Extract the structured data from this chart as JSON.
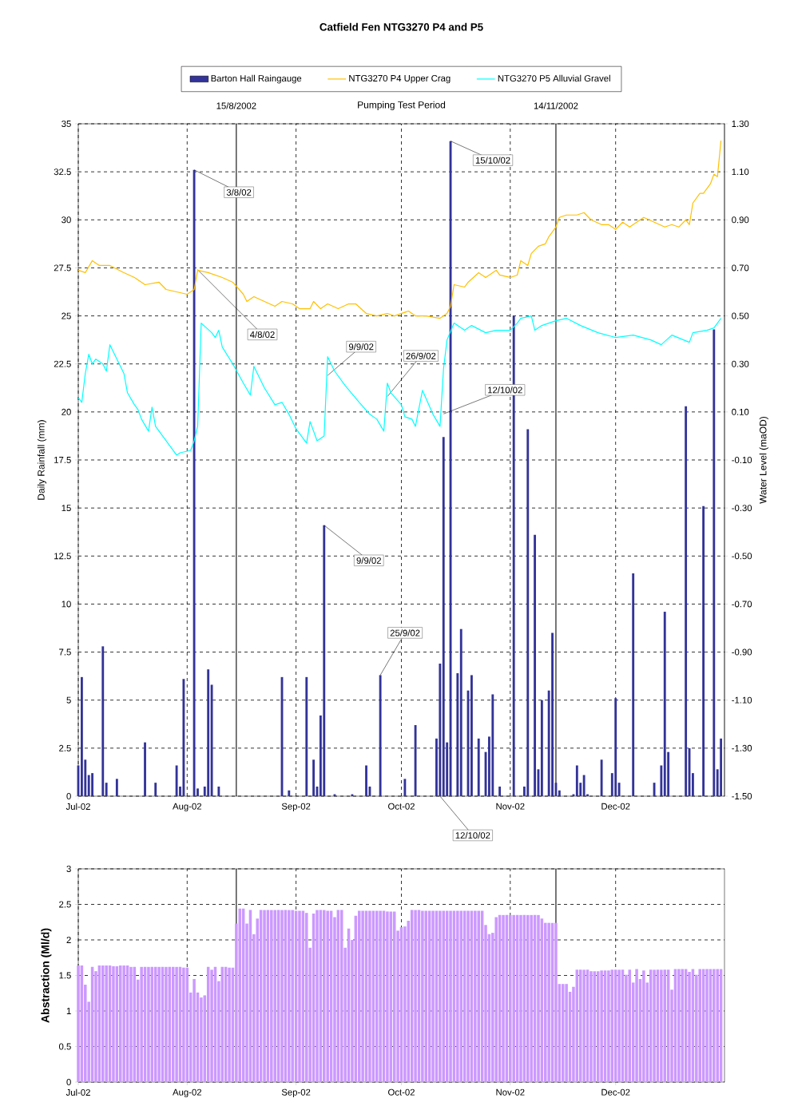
{
  "chart_data": [
    {
      "type": "bar",
      "title": "Catfield Fen NTG3270 P4 and P5",
      "ylabel": "Daily Rainfall (mm)",
      "y2label": "Water Level (maOD)",
      "xlim": [
        "2002-07-01",
        "2003-01-01"
      ],
      "xticks": [
        {
          "value": "2002-07-01",
          "label": "Jul-02"
        },
        {
          "value": "2002-08-01",
          "label": "Aug-02"
        },
        {
          "value": "2002-09-01",
          "label": "Sep-02"
        },
        {
          "value": "2002-10-01",
          "label": "Oct-02"
        },
        {
          "value": "2002-11-01",
          "label": "Nov-02"
        },
        {
          "value": "2002-12-01",
          "label": "Dec-02"
        }
      ],
      "ylim": [
        0,
        35
      ],
      "yticks": [
        0,
        2.5,
        5,
        7.5,
        10,
        12.5,
        15,
        17.5,
        20,
        22.5,
        25,
        27.5,
        30,
        32.5,
        35
      ],
      "y2lim": [
        -1.5,
        1.3
      ],
      "y2ticks": [
        {
          "value": -1.5,
          "label": "-1.50"
        },
        {
          "value": -1.3,
          "label": "-1.30"
        },
        {
          "value": -1.1,
          "label": "-1.10"
        },
        {
          "value": -0.9,
          "label": "-0.90"
        },
        {
          "value": -0.7,
          "label": "-0.70"
        },
        {
          "value": -0.5,
          "label": "-0.50"
        },
        {
          "value": -0.3,
          "label": "-0.30"
        },
        {
          "value": -0.1,
          "label": "-0.10"
        },
        {
          "value": 0.1,
          "label": "0.10"
        },
        {
          "value": 0.3,
          "label": "0.30"
        },
        {
          "value": 0.5,
          "label": "0.50"
        },
        {
          "value": 0.7,
          "label": "0.70"
        },
        {
          "value": 0.9,
          "label": "0.90"
        },
        {
          "value": 1.1,
          "label": "1.10"
        },
        {
          "value": 1.3,
          "label": "1.30"
        }
      ],
      "grid": true,
      "legend": "top",
      "series": [
        {
          "name": "Barton Hall Raingauge",
          "color": "#333399",
          "x": [
            "2002-07-01",
            "2002-07-02",
            "2002-07-03",
            "2002-07-04",
            "2002-07-05",
            "2002-07-08",
            "2002-07-09",
            "2002-07-12",
            "2002-07-20",
            "2002-07-23",
            "2002-07-29",
            "2002-07-30",
            "2002-07-31",
            "2002-08-03",
            "2002-08-04",
            "2002-08-06",
            "2002-08-07",
            "2002-08-08",
            "2002-08-10",
            "2002-08-28",
            "2002-08-30",
            "2002-09-04",
            "2002-09-06",
            "2002-09-07",
            "2002-09-08",
            "2002-09-09",
            "2002-09-12",
            "2002-09-17",
            "2002-09-21",
            "2002-09-22",
            "2002-09-25",
            "2002-10-02",
            "2002-10-05",
            "2002-10-11",
            "2002-10-12",
            "2002-10-13",
            "2002-10-14",
            "2002-10-15",
            "2002-10-17",
            "2002-10-18",
            "2002-10-20",
            "2002-10-21",
            "2002-10-23",
            "2002-10-25",
            "2002-10-26",
            "2002-10-27",
            "2002-10-29",
            "2002-11-02",
            "2002-11-05",
            "2002-11-06",
            "2002-11-08",
            "2002-11-09",
            "2002-11-10",
            "2002-11-12",
            "2002-11-13",
            "2002-11-14",
            "2002-11-15",
            "2002-11-19",
            "2002-11-20",
            "2002-11-21",
            "2002-11-22",
            "2002-11-23",
            "2002-11-27",
            "2002-11-30",
            "2002-12-01",
            "2002-12-02",
            "2002-12-06",
            "2002-12-12",
            "2002-12-14",
            "2002-12-15",
            "2002-12-16",
            "2002-12-21",
            "2002-12-22",
            "2002-12-23",
            "2002-12-26",
            "2002-12-29",
            "2002-12-30",
            "2002-12-31"
          ],
          "values": [
            1.6,
            6.2,
            1.9,
            1.1,
            1.2,
            7.8,
            0.7,
            0.9,
            2.8,
            0.7,
            1.6,
            0.5,
            6.1,
            32.6,
            0.4,
            0.5,
            6.6,
            5.8,
            0.5,
            6.2,
            0.3,
            6.2,
            1.9,
            0.5,
            4.2,
            14.1,
            0.1,
            0.1,
            1.6,
            0.5,
            6.3,
            0.9,
            3.7,
            3.0,
            6.9,
            18.7,
            2.8,
            34.1,
            6.4,
            8.7,
            5.5,
            6.3,
            3.0,
            2.3,
            3.1,
            5.3,
            0.5,
            25.0,
            0.5,
            19.1,
            13.6,
            1.4,
            5.0,
            5.5,
            8.5,
            0.7,
            0.3,
            0.1,
            1.6,
            0.7,
            1.1,
            0.1,
            1.9,
            1.2,
            5.1,
            0.7,
            11.6,
            0.7,
            1.6,
            9.6,
            2.3,
            20.3,
            2.5,
            1.2,
            15.1,
            24.3,
            1.4,
            3.0
          ]
        },
        {
          "name": "NTG3270 P4 Upper Crag",
          "type": "line",
          "axis": "y2",
          "color": "#ffc000",
          "x": [
            "2002-07-01",
            "2002-07-03",
            "2002-07-05",
            "2002-07-07",
            "2002-07-10",
            "2002-07-14",
            "2002-07-17",
            "2002-07-20",
            "2002-07-24",
            "2002-07-26",
            "2002-07-29",
            "2002-08-01",
            "2002-08-03",
            "2002-08-04",
            "2002-08-07",
            "2002-08-11",
            "2002-08-14",
            "2002-08-17",
            "2002-08-18",
            "2002-08-20",
            "2002-08-23",
            "2002-08-26",
            "2002-08-28",
            "2002-08-31",
            "2002-09-02",
            "2002-09-05",
            "2002-09-06",
            "2002-09-08",
            "2002-09-10",
            "2002-09-13",
            "2002-09-16",
            "2002-09-18",
            "2002-09-21",
            "2002-09-24",
            "2002-09-27",
            "2002-09-29",
            "2002-10-03",
            "2002-10-05",
            "2002-10-08",
            "2002-10-12",
            "2002-10-14",
            "2002-10-15",
            "2002-10-16",
            "2002-10-19",
            "2002-10-20",
            "2002-10-23",
            "2002-10-25",
            "2002-10-28",
            "2002-10-29",
            "2002-11-01",
            "2002-11-03",
            "2002-11-04",
            "2002-11-06",
            "2002-11-07",
            "2002-11-09",
            "2002-11-11",
            "2002-11-12",
            "2002-11-14",
            "2002-11-15",
            "2002-11-17",
            "2002-11-20",
            "2002-11-22",
            "2002-11-24",
            "2002-11-27",
            "2002-11-29",
            "2002-12-01",
            "2002-12-03",
            "2002-12-05",
            "2002-12-06",
            "2002-12-09",
            "2002-12-12",
            "2002-12-15",
            "2002-12-17",
            "2002-12-19",
            "2002-12-21",
            "2002-12-22",
            "2002-12-23",
            "2002-12-25",
            "2002-12-26",
            "2002-12-28",
            "2002-12-29",
            "2002-12-30",
            "2002-12-31"
          ],
          "values": [
            0.69,
            0.68,
            0.73,
            0.71,
            0.71,
            0.68,
            0.66,
            0.63,
            0.64,
            0.61,
            0.6,
            0.59,
            0.61,
            0.69,
            0.68,
            0.66,
            0.64,
            0.59,
            0.56,
            0.58,
            0.56,
            0.54,
            0.56,
            0.55,
            0.53,
            0.53,
            0.56,
            0.53,
            0.55,
            0.53,
            0.55,
            0.55,
            0.51,
            0.5,
            0.51,
            0.5,
            0.52,
            0.5,
            0.5,
            0.49,
            0.51,
            0.54,
            0.63,
            0.62,
            0.64,
            0.68,
            0.66,
            0.69,
            0.67,
            0.66,
            0.67,
            0.73,
            0.71,
            0.76,
            0.79,
            0.8,
            0.83,
            0.87,
            0.91,
            0.92,
            0.92,
            0.93,
            0.9,
            0.88,
            0.88,
            0.86,
            0.89,
            0.87,
            0.88,
            0.91,
            0.89,
            0.87,
            0.88,
            0.87,
            0.9,
            0.88,
            0.97,
            1.01,
            1.01,
            1.05,
            1.09,
            1.08,
            1.23
          ]
        },
        {
          "name": "NTG3270 P5 Alluvial Gravel",
          "type": "line",
          "axis": "y2",
          "color": "#00ffff",
          "x": [
            "2002-07-01",
            "2002-07-02",
            "2002-07-03",
            "2002-07-04",
            "2002-07-05",
            "2002-07-06",
            "2002-07-08",
            "2002-07-09",
            "2002-07-10",
            "2002-07-12",
            "2002-07-14",
            "2002-07-15",
            "2002-07-17",
            "2002-07-18",
            "2002-07-19",
            "2002-07-21",
            "2002-07-22",
            "2002-07-23",
            "2002-07-25",
            "2002-07-27",
            "2002-07-29",
            "2002-07-30",
            "2002-08-02",
            "2002-08-03",
            "2002-08-04",
            "2002-08-05",
            "2002-08-08",
            "2002-08-09",
            "2002-08-10",
            "2002-08-11",
            "2002-08-14",
            "2002-08-17",
            "2002-08-19",
            "2002-08-20",
            "2002-08-23",
            "2002-08-26",
            "2002-08-28",
            "2002-08-30",
            "2002-09-01",
            "2002-09-04",
            "2002-09-05",
            "2002-09-07",
            "2002-09-09",
            "2002-09-10",
            "2002-09-12",
            "2002-09-15",
            "2002-09-19",
            "2002-09-22",
            "2002-09-24",
            "2002-09-26",
            "2002-09-27",
            "2002-09-28",
            "2002-10-01",
            "2002-10-02",
            "2002-10-04",
            "2002-10-05",
            "2002-10-07",
            "2002-10-10",
            "2002-10-12",
            "2002-10-13",
            "2002-10-14",
            "2002-10-16",
            "2002-10-19",
            "2002-10-21",
            "2002-10-25",
            "2002-10-28",
            "2002-11-01",
            "2002-11-03",
            "2002-11-04",
            "2002-11-07",
            "2002-11-08",
            "2002-11-10",
            "2002-11-14",
            "2002-11-17",
            "2002-11-21",
            "2002-11-26",
            "2002-12-01",
            "2002-12-06",
            "2002-12-11",
            "2002-12-14",
            "2002-12-17",
            "2002-12-22",
            "2002-12-23",
            "2002-12-27",
            "2002-12-29",
            "2002-12-31"
          ],
          "values": [
            0.16,
            0.14,
            0.26,
            0.34,
            0.3,
            0.32,
            0.3,
            0.27,
            0.38,
            0.32,
            0.26,
            0.18,
            0.13,
            0.11,
            0.07,
            0.02,
            0.12,
            0.04,
            0.0,
            -0.04,
            -0.08,
            -0.07,
            -0.06,
            -0.02,
            0.04,
            0.47,
            0.43,
            0.41,
            0.44,
            0.37,
            0.3,
            0.22,
            0.17,
            0.29,
            0.2,
            0.13,
            0.14,
            0.09,
            0.03,
            -0.03,
            0.06,
            -0.02,
            0.0,
            0.33,
            0.27,
            0.21,
            0.14,
            0.09,
            0.07,
            0.02,
            0.22,
            0.18,
            0.13,
            0.08,
            0.07,
            0.04,
            0.19,
            0.09,
            0.04,
            0.28,
            0.4,
            0.47,
            0.44,
            0.46,
            0.43,
            0.44,
            0.44,
            0.47,
            0.49,
            0.5,
            0.44,
            0.46,
            0.48,
            0.49,
            0.46,
            0.43,
            0.41,
            0.42,
            0.4,
            0.38,
            0.42,
            0.39,
            0.43,
            0.44,
            0.45,
            0.49
          ]
        }
      ],
      "ref_lines": [
        {
          "axis": "x",
          "value": "2002-08-15",
          "label": "15/8/2002"
        },
        {
          "axis": "x",
          "value": "2002-11-14",
          "label": "14/11/2002"
        }
      ],
      "annotations": [
        "Pumping Test Period",
        {
          "text": "3/8/02",
          "x": "2002-08-03",
          "y": 32.6
        },
        {
          "text": "4/8/02",
          "x": "2002-08-04",
          "y": 27.4
        },
        {
          "text": "9/9/02",
          "x": "2002-09-10",
          "y": 21.9
        },
        {
          "text": "26/9/02",
          "x": "2002-09-27",
          "y": 20.8
        },
        {
          "text": "12/10/02",
          "x": "2002-10-13",
          "y": 19.9
        },
        {
          "text": "15/10/02",
          "x": "2002-10-15",
          "y": 34.1
        },
        {
          "text": "9/9/02",
          "x": "2002-09-09",
          "y": 14.1
        },
        {
          "text": "25/9/02",
          "x": "2002-09-25",
          "y": 6.3
        },
        {
          "text": "12/10/02",
          "x": "2002-10-12",
          "y": 0
        }
      ]
    },
    {
      "type": "bar",
      "ylabel": "Abstraction (Ml/d)",
      "xlim": [
        "2002-07-01",
        "2003-01-01"
      ],
      "xticks": [
        {
          "value": "2002-07-01",
          "label": "Jul-02"
        },
        {
          "value": "2002-08-01",
          "label": "Aug-02"
        },
        {
          "value": "2002-09-01",
          "label": "Sep-02"
        },
        {
          "value": "2002-10-01",
          "label": "Oct-02"
        },
        {
          "value": "2002-11-01",
          "label": "Nov-02"
        },
        {
          "value": "2002-12-01",
          "label": "Dec-02"
        }
      ],
      "ylim": [
        0,
        3
      ],
      "yticks": [
        0,
        0.5,
        1,
        1.5,
        2,
        2.5,
        3
      ],
      "grid": true,
      "series": [
        {
          "color": "#cc99ff",
          "x": [
            "2002-07-01",
            "2002-07-02",
            "2002-07-03",
            "2002-07-04",
            "2002-07-05",
            "2002-07-06",
            "2002-07-07",
            "2002-07-08",
            "2002-07-09",
            "2002-07-10",
            "2002-07-11",
            "2002-07-12",
            "2002-07-13",
            "2002-07-14",
            "2002-07-15",
            "2002-07-16",
            "2002-07-17",
            "2002-07-18",
            "2002-07-19",
            "2002-07-20",
            "2002-07-21",
            "2002-07-22",
            "2002-07-23",
            "2002-07-24",
            "2002-07-25",
            "2002-07-26",
            "2002-07-27",
            "2002-07-28",
            "2002-07-29",
            "2002-07-30",
            "2002-07-31",
            "2002-08-01",
            "2002-08-02",
            "2002-08-03",
            "2002-08-04",
            "2002-08-05",
            "2002-08-06",
            "2002-08-07",
            "2002-08-08",
            "2002-08-09",
            "2002-08-10",
            "2002-08-11",
            "2002-08-12",
            "2002-08-13",
            "2002-08-14",
            "2002-08-15",
            "2002-08-16",
            "2002-08-17",
            "2002-08-18",
            "2002-08-19",
            "2002-08-20",
            "2002-08-21",
            "2002-08-22",
            "2002-08-23",
            "2002-08-24",
            "2002-08-25",
            "2002-08-26",
            "2002-08-27",
            "2002-08-28",
            "2002-08-29",
            "2002-08-30",
            "2002-08-31",
            "2002-09-01",
            "2002-09-02",
            "2002-09-03",
            "2002-09-04",
            "2002-09-05",
            "2002-09-06",
            "2002-09-07",
            "2002-09-08",
            "2002-09-09",
            "2002-09-10",
            "2002-09-11",
            "2002-09-12",
            "2002-09-13",
            "2002-09-14",
            "2002-09-15",
            "2002-09-16",
            "2002-09-17",
            "2002-09-18",
            "2002-09-19",
            "2002-09-20",
            "2002-09-21",
            "2002-09-22",
            "2002-09-23",
            "2002-09-24",
            "2002-09-25",
            "2002-09-26",
            "2002-09-27",
            "2002-09-28",
            "2002-09-29",
            "2002-09-30",
            "2002-10-01",
            "2002-10-02",
            "2002-10-03",
            "2002-10-04",
            "2002-10-05",
            "2002-10-06",
            "2002-10-07",
            "2002-10-08",
            "2002-10-09",
            "2002-10-10",
            "2002-10-11",
            "2002-10-12",
            "2002-10-13",
            "2002-10-14",
            "2002-10-15",
            "2002-10-16",
            "2002-10-17",
            "2002-10-18",
            "2002-10-19",
            "2002-10-20",
            "2002-10-21",
            "2002-10-22",
            "2002-10-23",
            "2002-10-24",
            "2002-10-25",
            "2002-10-26",
            "2002-10-27",
            "2002-10-28",
            "2002-10-29",
            "2002-10-30",
            "2002-10-31",
            "2002-11-01",
            "2002-11-02",
            "2002-11-03",
            "2002-11-04",
            "2002-11-05",
            "2002-11-06",
            "2002-11-07",
            "2002-11-08",
            "2002-11-09",
            "2002-11-10",
            "2002-11-11",
            "2002-11-12",
            "2002-11-13",
            "2002-11-14",
            "2002-11-15",
            "2002-11-16",
            "2002-11-17",
            "2002-11-18",
            "2002-11-19",
            "2002-11-20",
            "2002-11-21",
            "2002-11-22",
            "2002-11-23",
            "2002-11-24",
            "2002-11-25",
            "2002-11-26",
            "2002-11-27",
            "2002-11-28",
            "2002-11-29",
            "2002-11-30",
            "2002-12-01",
            "2002-12-02",
            "2002-12-03",
            "2002-12-04",
            "2002-12-05",
            "2002-12-06",
            "2002-12-07",
            "2002-12-08",
            "2002-12-09",
            "2002-12-10",
            "2002-12-11",
            "2002-12-12",
            "2002-12-13",
            "2002-12-14",
            "2002-12-15",
            "2002-12-16",
            "2002-12-17",
            "2002-12-18",
            "2002-12-19",
            "2002-12-20",
            "2002-12-21",
            "2002-12-22",
            "2002-12-23",
            "2002-12-24",
            "2002-12-25",
            "2002-12-26",
            "2002-12-27",
            "2002-12-28",
            "2002-12-29",
            "2002-12-30",
            "2002-12-31"
          ],
          "values": [
            1.64,
            1.64,
            1.37,
            1.13,
            1.62,
            1.56,
            1.64,
            1.64,
            1.64,
            1.64,
            1.63,
            1.63,
            1.64,
            1.64,
            1.64,
            1.62,
            1.62,
            1.44,
            1.62,
            1.62,
            1.62,
            1.62,
            1.62,
            1.62,
            1.62,
            1.62,
            1.62,
            1.62,
            1.62,
            1.62,
            1.61,
            1.61,
            1.26,
            1.45,
            1.26,
            1.19,
            1.22,
            1.62,
            1.58,
            1.62,
            1.42,
            1.62,
            1.62,
            1.61,
            1.61,
            2.23,
            2.44,
            2.44,
            2.23,
            2.42,
            2.08,
            2.3,
            2.42,
            2.42,
            2.42,
            2.42,
            2.42,
            2.42,
            2.42,
            2.42,
            2.42,
            2.42,
            2.41,
            2.41,
            2.41,
            2.38,
            1.89,
            2.37,
            2.42,
            2.42,
            2.42,
            2.41,
            2.41,
            2.32,
            2.42,
            2.42,
            1.89,
            2.16,
            2.0,
            2.34,
            2.41,
            2.41,
            2.41,
            2.41,
            2.41,
            2.41,
            2.41,
            2.41,
            2.4,
            2.4,
            2.4,
            2.13,
            2.18,
            2.19,
            2.27,
            2.42,
            2.42,
            2.42,
            2.41,
            2.41,
            2.41,
            2.41,
            2.41,
            2.41,
            2.41,
            2.41,
            2.41,
            2.41,
            2.41,
            2.41,
            2.41,
            2.41,
            2.41,
            2.41,
            2.41,
            2.41,
            2.21,
            2.08,
            2.1,
            2.32,
            2.35,
            2.35,
            2.35,
            2.35,
            2.35,
            2.35,
            2.35,
            2.35,
            2.35,
            2.35,
            2.35,
            2.35,
            2.3,
            2.24,
            2.24,
            2.24,
            2.24,
            1.38,
            1.38,
            1.38,
            1.27,
            1.34,
            1.58,
            1.58,
            1.58,
            1.58,
            1.56,
            1.56,
            1.56,
            1.57,
            1.57,
            1.57,
            1.58,
            1.58,
            1.58,
            1.58,
            1.51,
            1.58,
            1.4,
            1.59,
            1.45,
            1.57,
            1.4,
            1.58,
            1.58,
            1.58,
            1.58,
            1.58,
            1.58,
            1.3,
            1.59,
            1.59,
            1.59,
            1.59,
            1.55,
            1.59,
            1.51,
            1.59,
            1.59,
            1.59,
            1.59,
            1.59,
            1.59,
            1.59
          ]
        }
      ],
      "ref_lines": [
        {
          "axis": "x",
          "value": "2002-08-15"
        },
        {
          "axis": "x",
          "value": "2002-11-14"
        }
      ]
    }
  ]
}
